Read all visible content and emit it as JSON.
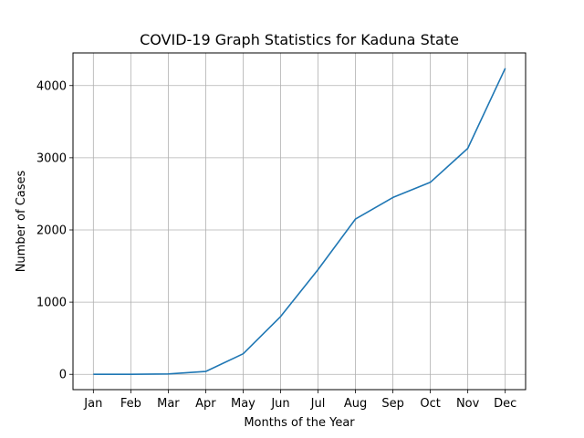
{
  "chart_data": {
    "type": "line",
    "title": "COVID-19 Graph Statistics for Kaduna State",
    "xlabel": "Months of the Year",
    "ylabel": "Number of Cases",
    "categories": [
      "Jan",
      "Feb",
      "Mar",
      "Apr",
      "May",
      "Jun",
      "Jul",
      "Aug",
      "Sep",
      "Oct",
      "Nov",
      "Dec"
    ],
    "series": [
      {
        "values": [
          0,
          0,
          6,
          40,
          285,
          800,
          1450,
          2150,
          2450,
          2660,
          3130,
          4240
        ],
        "color": "#1f77b4"
      }
    ],
    "yticks": [
      0,
      1000,
      2000,
      3000,
      4000
    ],
    "ylim": [
      -212,
      4452
    ],
    "grid": true
  }
}
